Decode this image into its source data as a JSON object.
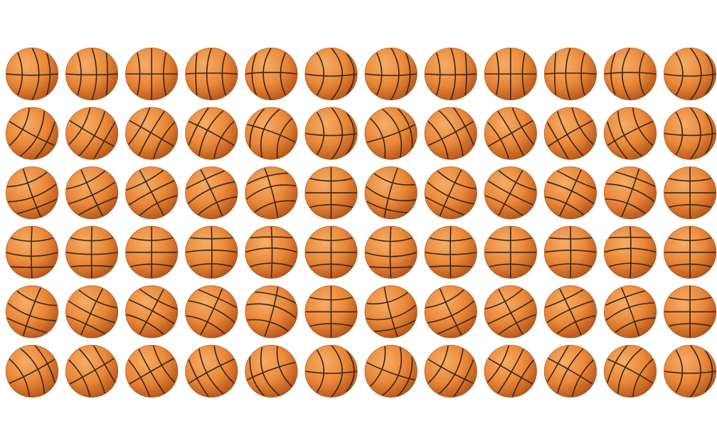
{
  "image": {
    "subject": "basketball-rotation-sprite-sheet",
    "rows": 6,
    "columns": 12,
    "background": "#ffffff"
  },
  "colors": {
    "ball_light": "#f8b06a",
    "ball_mid": "#ec8a3a",
    "ball_dark": "#b8561a",
    "seam": "#3a2516"
  },
  "sprite_frames": [
    [
      {
        "tilt": 0,
        "phase": 0.62
      },
      {
        "tilt": 0,
        "phase": 0.42
      },
      {
        "tilt": 0,
        "phase": 0.0
      },
      {
        "tilt": 0,
        "phase": -0.42
      },
      {
        "tilt": 0,
        "phase": -0.72
      },
      {
        "tilt": 0,
        "phase": 1.0
      },
      {
        "tilt": 0,
        "phase": 0.72
      },
      {
        "tilt": 0,
        "phase": 0.42
      },
      {
        "tilt": 0,
        "phase": 0.0
      },
      {
        "tilt": 0,
        "phase": -0.42
      },
      {
        "tilt": 0,
        "phase": -0.72
      },
      {
        "tilt": 0,
        "phase": 1.0
      }
    ],
    [
      {
        "tilt": 28,
        "phase": 0.55
      },
      {
        "tilt": 30,
        "phase": 0.3
      },
      {
        "tilt": 30,
        "phase": -0.1
      },
      {
        "tilt": 28,
        "phase": -0.45
      },
      {
        "tilt": 20,
        "phase": -0.75
      },
      {
        "tilt": 0,
        "phase": 1.0
      },
      {
        "tilt": -20,
        "phase": 0.75
      },
      {
        "tilt": -28,
        "phase": 0.45
      },
      {
        "tilt": -30,
        "phase": 0.1
      },
      {
        "tilt": -30,
        "phase": -0.3
      },
      {
        "tilt": -28,
        "phase": -0.55
      },
      {
        "tilt": 0,
        "phase": 0.95
      }
    ],
    [
      {
        "tilt": 70,
        "phase": 0.4
      },
      {
        "tilt": 65,
        "phase": 0.2
      },
      {
        "tilt": 62,
        "phase": -0.1
      },
      {
        "tilt": 65,
        "phase": -0.35
      },
      {
        "tilt": 75,
        "phase": -0.55
      },
      {
        "tilt": 90,
        "phase": 0.0
      },
      {
        "tilt": 105,
        "phase": 0.55
      },
      {
        "tilt": 115,
        "phase": 0.35
      },
      {
        "tilt": 118,
        "phase": 0.1
      },
      {
        "tilt": 115,
        "phase": -0.2
      },
      {
        "tilt": 110,
        "phase": -0.4
      },
      {
        "tilt": 90,
        "phase": 0.0
      }
    ],
    [
      {
        "tilt": 90,
        "phase": 0.35
      },
      {
        "tilt": 90,
        "phase": 0.18
      },
      {
        "tilt": 90,
        "phase": 0.0
      },
      {
        "tilt": 90,
        "phase": -0.2
      },
      {
        "tilt": 90,
        "phase": -0.38
      },
      {
        "tilt": 90,
        "phase": 0.0
      },
      {
        "tilt": 90,
        "phase": 0.38
      },
      {
        "tilt": 90,
        "phase": 0.2
      },
      {
        "tilt": 90,
        "phase": 0.0
      },
      {
        "tilt": 90,
        "phase": -0.18
      },
      {
        "tilt": 90,
        "phase": -0.35
      },
      {
        "tilt": 90,
        "phase": 0.0
      }
    ],
    [
      {
        "tilt": 110,
        "phase": 0.4
      },
      {
        "tilt": 115,
        "phase": 0.2
      },
      {
        "tilt": 118,
        "phase": -0.1
      },
      {
        "tilt": 115,
        "phase": -0.35
      },
      {
        "tilt": 105,
        "phase": -0.55
      },
      {
        "tilt": 90,
        "phase": 0.0
      },
      {
        "tilt": 75,
        "phase": 0.55
      },
      {
        "tilt": 65,
        "phase": 0.35
      },
      {
        "tilt": 62,
        "phase": 0.1
      },
      {
        "tilt": 65,
        "phase": -0.2
      },
      {
        "tilt": 70,
        "phase": -0.4
      },
      {
        "tilt": 90,
        "phase": 0.0
      }
    ],
    [
      {
        "tilt": -28,
        "phase": 0.55
      },
      {
        "tilt": -30,
        "phase": 0.3
      },
      {
        "tilt": -30,
        "phase": -0.1
      },
      {
        "tilt": -28,
        "phase": -0.45
      },
      {
        "tilt": -20,
        "phase": -0.75
      },
      {
        "tilt": 0,
        "phase": 1.0
      },
      {
        "tilt": 20,
        "phase": 0.75
      },
      {
        "tilt": 28,
        "phase": 0.45
      },
      {
        "tilt": 30,
        "phase": 0.1
      },
      {
        "tilt": 30,
        "phase": -0.3
      },
      {
        "tilt": 28,
        "phase": -0.55
      },
      {
        "tilt": 0,
        "phase": 0.95
      }
    ]
  ]
}
